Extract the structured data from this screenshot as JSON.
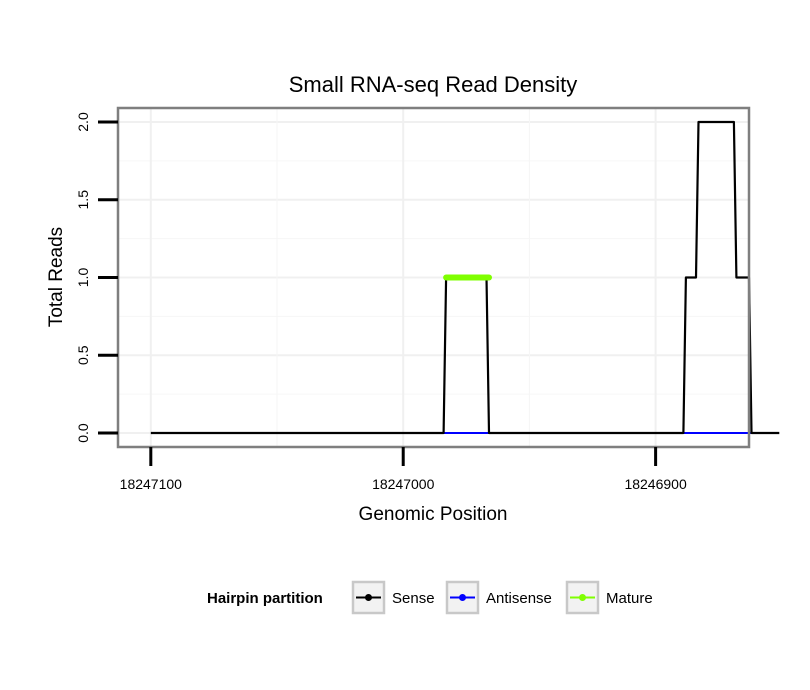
{
  "chart_data": {
    "type": "line",
    "title": "Small RNA-seq Read Density",
    "xlabel": "Genomic Position",
    "ylabel": "Total Reads",
    "x_reversed": true,
    "xlim": [
      18247113,
      18246863
    ],
    "ylim": [
      -0.09,
      2.09
    ],
    "x_ticks": [
      18247100,
      18247000,
      18246900
    ],
    "x_tick_labels": [
      "18247100",
      "18247000",
      "18246900"
    ],
    "y_ticks": [
      0.0,
      0.5,
      1.0,
      1.5,
      2.0
    ],
    "y_tick_labels": [
      "0.0",
      "0.5",
      "1.0",
      "1.5",
      "2.0"
    ],
    "grid": true,
    "legend": {
      "title": "Hairpin partition",
      "position": "bottom",
      "entries": [
        {
          "name": "Sense",
          "color": "#000000"
        },
        {
          "name": "Antisense",
          "color": "#0000ff"
        },
        {
          "name": "Mature",
          "color": "#7fff00"
        }
      ]
    },
    "series": [
      {
        "name": "Sense",
        "color": "#000000",
        "points": [
          [
            18247100,
            0
          ],
          [
            18246984,
            0
          ],
          [
            18246983,
            1
          ],
          [
            18246967,
            1
          ],
          [
            18246966,
            0
          ],
          [
            18246889,
            0
          ],
          [
            18246888,
            1
          ],
          [
            18246884,
            1
          ],
          [
            18246883,
            2
          ],
          [
            18246869,
            2
          ],
          [
            18246868,
            1
          ],
          [
            18246863,
            1
          ],
          [
            18246862,
            0
          ],
          [
            18246851,
            0
          ]
        ]
      },
      {
        "name": "Antisense",
        "color": "#0000ff",
        "points": [
          [
            18246984,
            0
          ],
          [
            18246966,
            0
          ],
          [
            18246889,
            0
          ],
          [
            18246862,
            0
          ]
        ]
      },
      {
        "name": "Mature",
        "color": "#7fff00",
        "points": [
          [
            18246983,
            1
          ],
          [
            18246966,
            1
          ]
        ]
      }
    ]
  }
}
